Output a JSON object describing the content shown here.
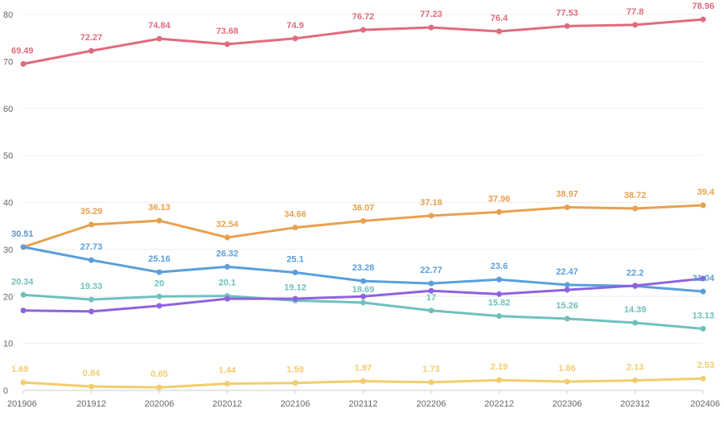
{
  "chart_data": {
    "type": "line",
    "title": "",
    "xlabel": "",
    "ylabel": "",
    "categories": [
      "201906",
      "201912",
      "202006",
      "202012",
      "202106",
      "202112",
      "202206",
      "202212",
      "202306",
      "202312",
      "202406"
    ],
    "ylim": [
      0,
      80
    ],
    "yticks": [
      0,
      10,
      20,
      30,
      40,
      50,
      60,
      70,
      80
    ],
    "grid": true,
    "legend": "bottom",
    "series": [
      {
        "name": "",
        "color": "#e06b7d",
        "labeled": true,
        "values": [
          69.49,
          72.27,
          74.84,
          73.68,
          74.9,
          76.72,
          77.23,
          76.4,
          77.53,
          77.8,
          78.96
        ]
      },
      {
        "name": "",
        "color": "#e8a04f",
        "labeled": true,
        "values": [
          30.51,
          35.29,
          36.13,
          32.54,
          34.66,
          36.07,
          37.18,
          37.96,
          38.97,
          38.72,
          39.4
        ]
      },
      {
        "name": "",
        "color": "#5a9fdb",
        "labeled": true,
        "values": [
          30.51,
          27.73,
          25.16,
          26.32,
          25.1,
          23.28,
          22.77,
          23.6,
          22.47,
          22.2,
          21.04
        ]
      },
      {
        "name": "",
        "color": "#6ec1bd",
        "labeled": true,
        "values": [
          20.34,
          19.33,
          20,
          20.1,
          19.12,
          18.69,
          17,
          15.82,
          15.26,
          14.39,
          13.13
        ]
      },
      {
        "name": "",
        "color": "#8e62e0",
        "labeled": false,
        "values": [
          17,
          16.8,
          18,
          19.5,
          19.5,
          20,
          21.2,
          20.5,
          21.4,
          22.3,
          23.8
        ]
      },
      {
        "name": "",
        "color": "#f2cd6d",
        "labeled": true,
        "values": [
          1.69,
          0.84,
          0.65,
          1.44,
          1.59,
          1.97,
          1.73,
          2.19,
          1.86,
          2.13,
          2.53
        ]
      }
    ]
  }
}
